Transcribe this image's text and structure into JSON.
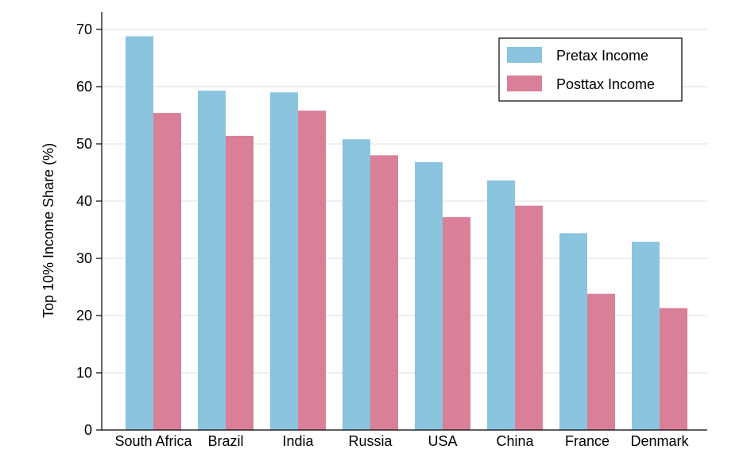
{
  "chart_data": {
    "type": "bar",
    "title": "",
    "xlabel": "",
    "ylabel": "Top 10% Income Share (%)",
    "ylim": [
      0,
      70
    ],
    "yticks": [
      "0",
      "10",
      "20",
      "30",
      "40",
      "50",
      "60",
      "70"
    ],
    "grid": true,
    "legend_position": "top-right",
    "categories": [
      "South Africa",
      "Brazil",
      "India",
      "Russia",
      "USA",
      "China",
      "France",
      "Denmark"
    ],
    "series": [
      {
        "name": "Pretax Income",
        "color": "#8bc4de",
        "values": [
          68.8,
          59.3,
          59.0,
          50.8,
          46.8,
          43.6,
          34.4,
          32.9
        ]
      },
      {
        "name": "Posttax Income",
        "color": "#d97f97",
        "values": [
          55.4,
          51.4,
          55.8,
          48.0,
          37.2,
          39.2,
          23.8,
          21.3
        ]
      }
    ]
  }
}
